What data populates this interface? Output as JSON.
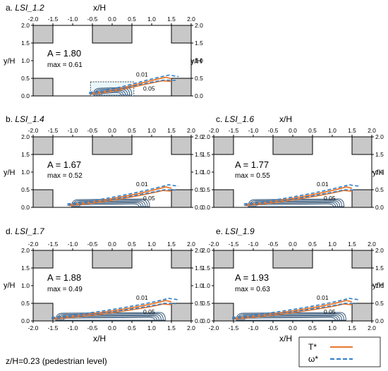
{
  "x_axis_title": "x/H",
  "y_axis_title": "y/H",
  "x_ticks": [
    "-2.0",
    "-1.5",
    "-1.0",
    "-0.5",
    "0.0",
    "0.5",
    "1.0",
    "1.5",
    "2.0"
  ],
  "y_ticks": [
    "0.0",
    "0.5",
    "1.0",
    "1.5",
    "2.0"
  ],
  "contour_labels": [
    "0.01",
    "0.05"
  ],
  "panels": [
    {
      "title_prefix": "a. ",
      "title_case": "LSI_1.2",
      "a_text": "A = 1.80",
      "max_text": "max = 0.61"
    },
    {
      "title_prefix": "b. ",
      "title_case": "LSI_1.4",
      "a_text": "A = 1.67",
      "max_text": "max = 0.52"
    },
    {
      "title_prefix": "c. ",
      "title_case": "LSI_1.6",
      "a_text": "A = 1.77",
      "max_text": "max = 0.55"
    },
    {
      "title_prefix": "d. ",
      "title_case": "LSI_1.7",
      "a_text": "A = 1.88",
      "max_text": "max = 0.49"
    },
    {
      "title_prefix": "e. ",
      "title_case": "LSI_1.9",
      "a_text": "A = 1.93",
      "max_text": "max = 0.63"
    }
  ],
  "legend": {
    "t_label": "T*",
    "w_label": "ω*"
  },
  "footnote": "z/H=0.23 (pedestrian level)",
  "colors": {
    "t_line": "#e8772e",
    "w_line": "#2f7fc9",
    "building": "#c8c8c8",
    "contour": "#3a5a7a"
  }
}
